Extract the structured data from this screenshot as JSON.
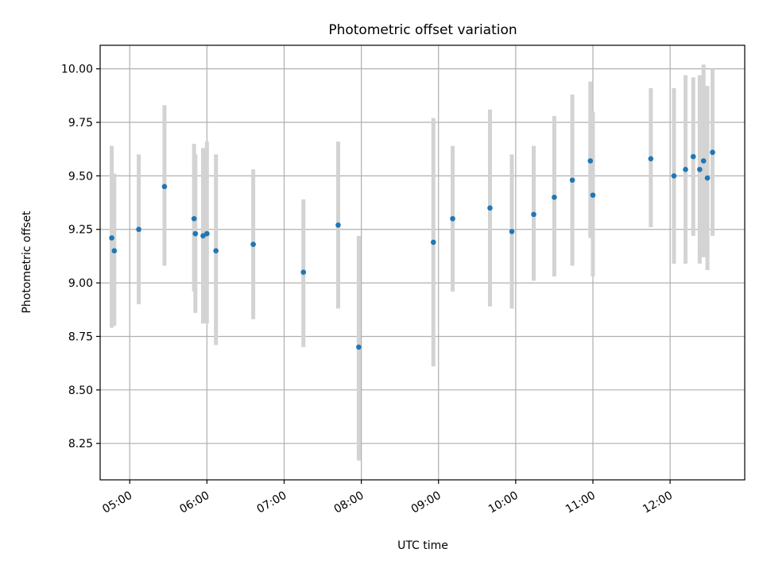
{
  "chart_data": {
    "type": "scatter",
    "title": "Photometric offset variation",
    "xlabel": "UTC time",
    "ylabel": "Photometric offset",
    "x_ticks": [
      "05:00",
      "06:00",
      "07:00",
      "08:00",
      "09:00",
      "10:00",
      "11:00",
      "12:00"
    ],
    "y_ticks": [
      "8.25",
      "8.50",
      "8.75",
      "9.00",
      "9.25",
      "9.50",
      "9.75",
      "10.00"
    ],
    "xlim": [
      "04:37",
      "12:58"
    ],
    "ylim": [
      8.08,
      10.11
    ],
    "grid": true,
    "marker_color": "#1f77b4",
    "errorbar_color": "#d3d3d3",
    "points": [
      {
        "x": "04:46",
        "y": 9.21,
        "ylow": 8.79,
        "yhigh": 9.64
      },
      {
        "x": "04:48",
        "y": 9.15,
        "ylow": 8.8,
        "yhigh": 9.51
      },
      {
        "x": "05:07",
        "y": 9.25,
        "ylow": 8.9,
        "yhigh": 9.6
      },
      {
        "x": "05:27",
        "y": 9.45,
        "ylow": 9.08,
        "yhigh": 9.83
      },
      {
        "x": "05:50",
        "y": 9.3,
        "ylow": 8.96,
        "yhigh": 9.65
      },
      {
        "x": "05:51",
        "y": 9.23,
        "ylow": 8.86,
        "yhigh": 9.6
      },
      {
        "x": "05:57",
        "y": 9.22,
        "ylow": 8.81,
        "yhigh": 9.63
      },
      {
        "x": "06:00",
        "y": 9.23,
        "ylow": 8.81,
        "yhigh": 9.66
      },
      {
        "x": "06:07",
        "y": 9.15,
        "ylow": 8.71,
        "yhigh": 9.6
      },
      {
        "x": "06:36",
        "y": 9.18,
        "ylow": 8.83,
        "yhigh": 9.53
      },
      {
        "x": "07:15",
        "y": 9.05,
        "ylow": 8.7,
        "yhigh": 9.39
      },
      {
        "x": "07:42",
        "y": 9.27,
        "ylow": 8.88,
        "yhigh": 9.66
      },
      {
        "x": "07:58",
        "y": 8.7,
        "ylow": 8.17,
        "yhigh": 9.22
      },
      {
        "x": "08:56",
        "y": 9.19,
        "ylow": 8.61,
        "yhigh": 9.77
      },
      {
        "x": "09:11",
        "y": 9.3,
        "ylow": 8.96,
        "yhigh": 9.64
      },
      {
        "x": "09:40",
        "y": 9.35,
        "ylow": 8.89,
        "yhigh": 9.81
      },
      {
        "x": "09:57",
        "y": 9.24,
        "ylow": 8.88,
        "yhigh": 9.6
      },
      {
        "x": "10:14",
        "y": 9.32,
        "ylow": 9.01,
        "yhigh": 9.64
      },
      {
        "x": "10:30",
        "y": 9.4,
        "ylow": 9.03,
        "yhigh": 9.78
      },
      {
        "x": "10:44",
        "y": 9.48,
        "ylow": 9.08,
        "yhigh": 9.88
      },
      {
        "x": "10:58",
        "y": 9.57,
        "ylow": 9.21,
        "yhigh": 9.94
      },
      {
        "x": "11:00",
        "y": 9.41,
        "ylow": 9.03,
        "yhigh": 9.8
      },
      {
        "x": "11:45",
        "y": 9.58,
        "ylow": 9.26,
        "yhigh": 9.91
      },
      {
        "x": "12:03",
        "y": 9.5,
        "ylow": 9.09,
        "yhigh": 9.91
      },
      {
        "x": "12:12",
        "y": 9.53,
        "ylow": 9.09,
        "yhigh": 9.97
      },
      {
        "x": "12:18",
        "y": 9.59,
        "ylow": 9.22,
        "yhigh": 9.96
      },
      {
        "x": "12:23",
        "y": 9.53,
        "ylow": 9.09,
        "yhigh": 9.97
      },
      {
        "x": "12:26",
        "y": 9.57,
        "ylow": 9.12,
        "yhigh": 10.02
      },
      {
        "x": "12:29",
        "y": 9.49,
        "ylow": 9.06,
        "yhigh": 9.92
      },
      {
        "x": "12:33",
        "y": 9.61,
        "ylow": 9.22,
        "yhigh": 10.0
      }
    ]
  }
}
